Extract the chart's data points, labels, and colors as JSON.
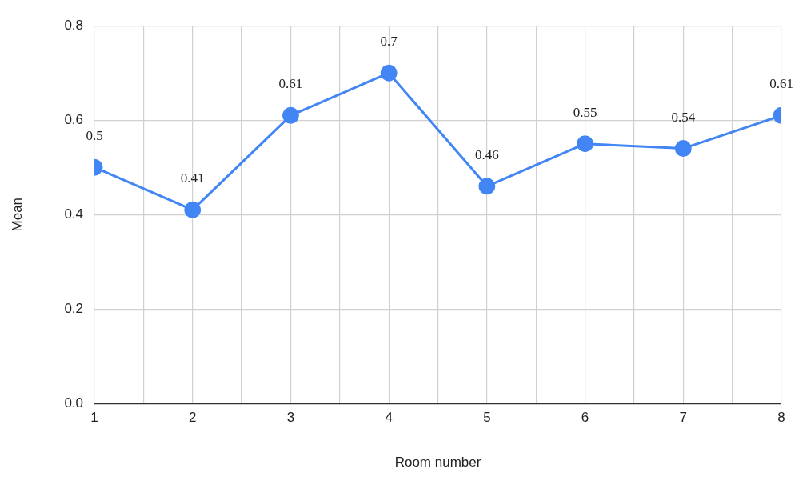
{
  "chart_data": {
    "type": "line",
    "xlabel": "Room number",
    "ylabel": "Mean",
    "x": [
      1,
      2,
      3,
      4,
      5,
      6,
      7,
      8
    ],
    "series": [
      {
        "color": "#4285f4",
        "values": [
          0.5,
          0.41,
          0.61,
          0.7,
          0.46,
          0.55,
          0.54,
          0.61
        ]
      }
    ],
    "xlim": [
      1,
      8
    ],
    "xticks": [
      1,
      {
        "value": 1.5,
        "label": null
      },
      2,
      {
        "value": 2.5,
        "label": null
      },
      3,
      {
        "value": 3.5,
        "label": null
      },
      4,
      {
        "value": 4.5,
        "label": null
      },
      5,
      {
        "value": 5.5,
        "label": null
      },
      6,
      {
        "value": 6.5,
        "label": null
      },
      7,
      {
        "value": 7.5,
        "label": null
      },
      8
    ],
    "ylim": [
      0,
      0.8
    ],
    "yticks": [
      {
        "value": 0,
        "label": "0.0"
      },
      {
        "value": 0.2,
        "label": "0.2"
      },
      {
        "value": 0.4,
        "label": "0.4"
      },
      {
        "value": 0.6,
        "label": "0.6"
      },
      {
        "value": 0.8,
        "label": "0.8"
      }
    ],
    "grid": true,
    "marker": "circle",
    "line_style": "solid",
    "data_labels": true,
    "legend": false
  }
}
